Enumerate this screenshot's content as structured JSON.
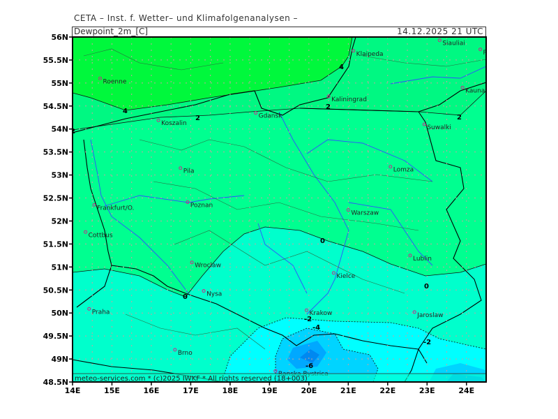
{
  "header": {
    "title": "CETA – Inst. f. Wetter– und Klimafolgenanalysen –",
    "field": "Dewpoint_2m_[C]",
    "valid_time": "14.12.2025 21 UTC"
  },
  "footer": {
    "credits": "meteo-services.com * (c)2025 IWKF * All rights reserved (18+003)"
  },
  "axes": {
    "x_labels": [
      "14E",
      "15E",
      "16E",
      "17E",
      "18E",
      "19E",
      "20E",
      "21E",
      "22E",
      "23E",
      "24E"
    ],
    "y_labels": [
      "56N",
      "55.5N",
      "55N",
      "54.5N",
      "54N",
      "53.5N",
      "53N",
      "52.5N",
      "52N",
      "51.5N",
      "51N",
      "50.5N",
      "50N",
      "49.5N",
      "49N",
      "48.5N"
    ],
    "lon_range": [
      14,
      24.5
    ],
    "lat_range": [
      48.5,
      56
    ]
  },
  "colors": {
    "above_4": "#00f83c",
    "2_to_4": "#00f882",
    "0_to_2": "#00ff90",
    "-2_to_0": "#00ffcc",
    "-4_to_-2": "#00ffff",
    "-6_to_-4": "#00d4ff",
    "below_-6": "#00a8ff",
    "city_marker": "#d0208a",
    "grid": "#c8a0a0"
  },
  "contour_labels": [
    "4",
    "4",
    "2",
    "2",
    "2",
    "2",
    "0",
    "0",
    "0",
    "-2",
    "-4",
    "-2",
    "-6"
  ],
  "cities": [
    {
      "name": "Roenne",
      "lon": 14.7,
      "lat": 55.1
    },
    {
      "name": "Koszalin",
      "lon": 16.18,
      "lat": 54.19
    },
    {
      "name": "Gdansk",
      "lon": 18.65,
      "lat": 54.35
    },
    {
      "name": "Kaliningrad",
      "lon": 20.5,
      "lat": 54.71
    },
    {
      "name": "Klaipeda",
      "lon": 21.13,
      "lat": 55.7
    },
    {
      "name": "Siauliai",
      "lon": 23.32,
      "lat": 55.93
    },
    {
      "name": "Panevezys",
      "lon": 24.35,
      "lat": 55.73
    },
    {
      "name": "Kaunas",
      "lon": 23.9,
      "lat": 54.9
    },
    {
      "name": "Suwalki",
      "lon": 22.93,
      "lat": 54.1
    },
    {
      "name": "Pila",
      "lon": 16.74,
      "lat": 53.15
    },
    {
      "name": "Lomza",
      "lon": 22.07,
      "lat": 53.18
    },
    {
      "name": "Poznan",
      "lon": 16.92,
      "lat": 52.41
    },
    {
      "name": "Frankfurt/O.",
      "lon": 14.55,
      "lat": 52.35
    },
    {
      "name": "Warszaw",
      "lon": 21.0,
      "lat": 52.24
    },
    {
      "name": "Cottbus",
      "lon": 14.33,
      "lat": 51.76
    },
    {
      "name": "Wroclaw",
      "lon": 17.03,
      "lat": 51.1
    },
    {
      "name": "Lublin",
      "lon": 22.57,
      "lat": 51.25
    },
    {
      "name": "Kielce",
      "lon": 20.63,
      "lat": 50.87
    },
    {
      "name": "Nysa",
      "lon": 17.33,
      "lat": 50.48
    },
    {
      "name": "Praha",
      "lon": 14.42,
      "lat": 50.09
    },
    {
      "name": "Krakow",
      "lon": 19.94,
      "lat": 50.06
    },
    {
      "name": "Jaroslaw",
      "lon": 22.68,
      "lat": 50.02
    },
    {
      "name": "Brno",
      "lon": 16.6,
      "lat": 49.2
    },
    {
      "name": "Banska Bystrica",
      "lon": 19.15,
      "lat": 48.74
    }
  ]
}
